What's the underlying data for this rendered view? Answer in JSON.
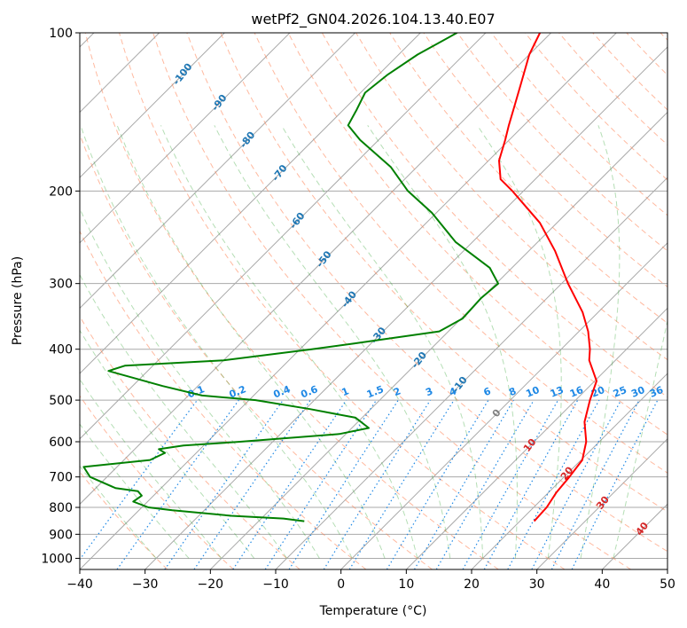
{
  "chart_data": {
    "type": "line",
    "title": "wetPf2_GN04.2026.104.13.40.E07",
    "xlabel": "Temperature (°C)",
    "ylabel": "Pressure (hPa)",
    "xlim": [
      -40,
      50
    ],
    "ylim": [
      1050,
      100
    ],
    "y_scale": "log",
    "skew": "skew-T",
    "xticks": [
      -40,
      -30,
      -20,
      -10,
      0,
      10,
      20,
      30,
      40,
      50
    ],
    "yticks": [
      100,
      200,
      300,
      400,
      500,
      600,
      700,
      800,
      900,
      1000
    ],
    "grid": true,
    "series": [
      {
        "role": "temperature",
        "color": "#ff0000",
        "points": [
          [
            850,
            22.2
          ],
          [
            800,
            22.0
          ],
          [
            750,
            21.2
          ],
          [
            700,
            20.8
          ],
          [
            650,
            20.2
          ],
          [
            600,
            18.0
          ],
          [
            550,
            14.7
          ],
          [
            500,
            12.2
          ],
          [
            460,
            10.3
          ],
          [
            420,
            6.0
          ],
          [
            400,
            4.4
          ],
          [
            370,
            1.4
          ],
          [
            340,
            -2.4
          ],
          [
            300,
            -9.0
          ],
          [
            260,
            -16.0
          ],
          [
            230,
            -22.6
          ],
          [
            200,
            -31.7
          ],
          [
            190,
            -35.3
          ],
          [
            175,
            -38.4
          ],
          [
            160,
            -40.6
          ],
          [
            150,
            -42.3
          ],
          [
            140,
            -44.0
          ],
          [
            125,
            -46.8
          ],
          [
            110,
            -50.0
          ],
          [
            100,
            -51.7
          ]
        ]
      },
      {
        "role": "dewpoint",
        "color": "#008000",
        "points": [
          [
            850,
            -13.0
          ],
          [
            840,
            -16.6
          ],
          [
            830,
            -25.0
          ],
          [
            810,
            -34.9
          ],
          [
            800,
            -39.0
          ],
          [
            780,
            -42.2
          ],
          [
            760,
            -41.8
          ],
          [
            745,
            -43.1
          ],
          [
            735,
            -47.0
          ],
          [
            700,
            -52.6
          ],
          [
            670,
            -55.1
          ],
          [
            650,
            -46.0
          ],
          [
            630,
            -44.8
          ],
          [
            620,
            -46.3
          ],
          [
            610,
            -43.1
          ],
          [
            600,
            -35.0
          ],
          [
            580,
            -21.0
          ],
          [
            565,
            -17.4
          ],
          [
            540,
            -21.0
          ],
          [
            520,
            -29.3
          ],
          [
            500,
            -39.0
          ],
          [
            490,
            -47.9
          ],
          [
            470,
            -55.4
          ],
          [
            440,
            -66.0
          ],
          [
            430,
            -64.3
          ],
          [
            420,
            -50.0
          ],
          [
            400,
            -38.2
          ],
          [
            390,
            -32.6
          ],
          [
            370,
            -21.4
          ],
          [
            350,
            -19.8
          ],
          [
            320,
            -20.1
          ],
          [
            300,
            -19.7
          ],
          [
            280,
            -23.4
          ],
          [
            250,
            -32.6
          ],
          [
            220,
            -40.7
          ],
          [
            200,
            -47.7
          ],
          [
            180,
            -54.0
          ],
          [
            160,
            -62.8
          ],
          [
            150,
            -66.9
          ],
          [
            140,
            -68.0
          ],
          [
            130,
            -69.3
          ],
          [
            120,
            -68.6
          ],
          [
            110,
            -67.1
          ],
          [
            100,
            -64.4
          ]
        ]
      }
    ],
    "isotherm_labels": [
      -100,
      -90,
      -80,
      -70,
      -60,
      -50,
      -40,
      -30,
      -20,
      -10,
      0,
      10,
      20,
      30,
      40
    ],
    "mixing_ratio_labels": [
      "0.1",
      "0.2",
      "0.4",
      "0.6",
      "1",
      "1.5",
      "2",
      "3",
      "4",
      "6",
      "8",
      "10",
      "13",
      "16",
      "20",
      "25",
      "30",
      "36"
    ],
    "colors": {
      "isotherm_cold": "#1f77b4",
      "isotherm_zero": "#7f7f7f",
      "isotherm_warm": "#d62728",
      "mixing_ratio": "#1e88e5",
      "dry_adiabat": "#ff7f50",
      "moist_adiabat": "#2ca02c",
      "grid": "#a9a9a9"
    }
  }
}
